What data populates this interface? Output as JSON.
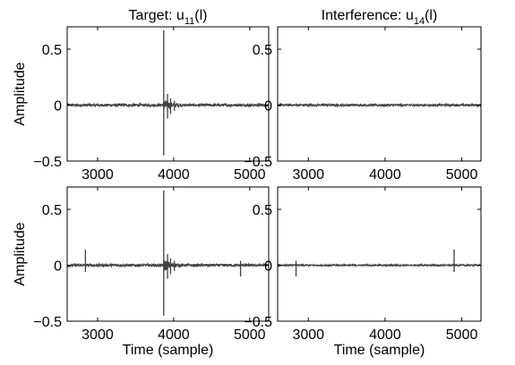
{
  "chart_data": [
    {
      "type": "line",
      "title_prefix": "Target: u",
      "title_subscript": "11",
      "title_suffix": "(l)",
      "xlabel": "",
      "ylabel": "Amplitude",
      "xlim": [
        2600,
        5250
      ],
      "ylim": [
        -0.5,
        0.7
      ],
      "xticks": [
        3000,
        4000,
        5000
      ],
      "yticks": [
        0.5,
        0,
        -0.5
      ],
      "ytick_labels": [
        "0.5",
        "0",
        "−0.5"
      ],
      "spikes": [
        {
          "x": 3870,
          "y_min": -0.45,
          "y_max": 0.67
        },
        {
          "x": 3920,
          "y_min": -0.12,
          "y_max": 0.1
        },
        {
          "x": 3960,
          "y_min": -0.08,
          "y_max": 0.06
        },
        {
          "x": 4010,
          "y_min": -0.05,
          "y_max": 0.04
        }
      ],
      "noise_level": 0.012
    },
    {
      "type": "line",
      "title_prefix": "Interference: u",
      "title_subscript": "14",
      "title_suffix": "(l)",
      "xlabel": "",
      "ylabel": "",
      "xlim": [
        2600,
        5250
      ],
      "ylim": [
        -0.5,
        0.7
      ],
      "xticks": [
        3000,
        4000,
        5000
      ],
      "yticks": [
        0.5,
        0,
        -0.5
      ],
      "ytick_labels": [
        "0.5",
        "0",
        "−0.5"
      ],
      "spikes": [],
      "noise_level": 0.01
    },
    {
      "type": "line",
      "title_prefix": "",
      "title_subscript": "",
      "title_suffix": "",
      "xlabel": "Time (sample)",
      "ylabel": "Amplitude",
      "xlim": [
        2600,
        5250
      ],
      "ylim": [
        -0.5,
        0.7
      ],
      "xticks": [
        3000,
        4000,
        5000
      ],
      "yticks": [
        0.5,
        0,
        -0.5
      ],
      "ytick_labels": [
        "0.5",
        "0",
        "−0.5"
      ],
      "spikes": [
        {
          "x": 2840,
          "y_min": -0.06,
          "y_max": 0.14
        },
        {
          "x": 3870,
          "y_min": -0.45,
          "y_max": 0.67
        },
        {
          "x": 3920,
          "y_min": -0.12,
          "y_max": 0.1
        },
        {
          "x": 3960,
          "y_min": -0.08,
          "y_max": 0.06
        },
        {
          "x": 4010,
          "y_min": -0.05,
          "y_max": 0.04
        },
        {
          "x": 4880,
          "y_min": -0.1,
          "y_max": 0.04
        }
      ],
      "noise_level": 0.012
    },
    {
      "type": "line",
      "title_prefix": "",
      "title_subscript": "",
      "title_suffix": "",
      "xlabel": "Time (sample)",
      "ylabel": "",
      "xlim": [
        2600,
        5250
      ],
      "ylim": [
        -0.5,
        0.7
      ],
      "xticks": [
        3000,
        4000,
        5000
      ],
      "yticks": [
        0.5,
        0,
        -0.5
      ],
      "ytick_labels": [
        "0.5",
        "0",
        "−0.5"
      ],
      "spikes": [
        {
          "x": 2840,
          "y_min": -0.1,
          "y_max": 0.04
        },
        {
          "x": 4900,
          "y_min": -0.06,
          "y_max": 0.14
        }
      ],
      "noise_level": 0.006
    }
  ],
  "colors": {
    "trace": "#404040",
    "axis": "#000000"
  }
}
